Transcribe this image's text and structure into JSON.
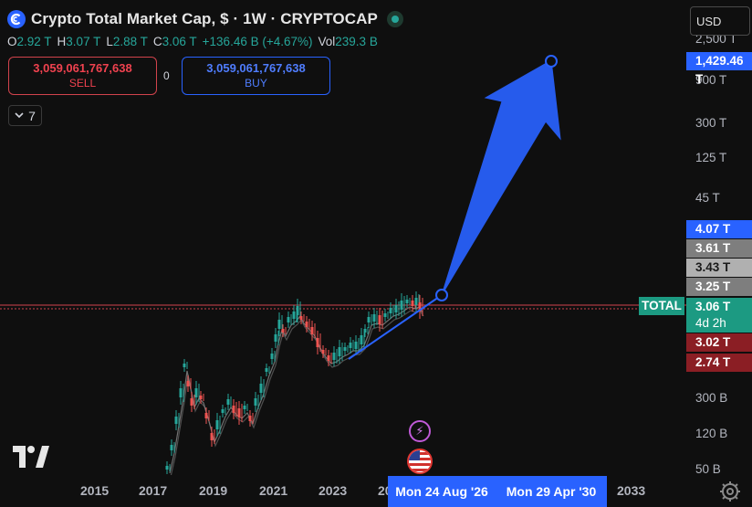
{
  "header": {
    "title": "Crypto Total Market Cap, $ · 1W · CRYPTOCAP",
    "symbol_icon": "crypto-c-icon",
    "status": "market-open"
  },
  "ohlc": {
    "open_key": "O",
    "open": "2.92 T",
    "high_key": "H",
    "high": "3.07 T",
    "low_key": "L",
    "low": "2.88 T",
    "close_key": "C",
    "close": "3.06 T",
    "change": "+136.46 B (+4.67%)",
    "vol_key": "Vol",
    "vol": "239.3 B"
  },
  "trade": {
    "sell_price": "3,059,061,767,638",
    "sell_label": "SELL",
    "spread": "0",
    "buy_price": "3,059,061,767,638",
    "buy_label": "BUY"
  },
  "indicators_toggle": {
    "count": "7"
  },
  "currency": "USD",
  "y_axis": {
    "labels": [
      {
        "text": "2,500 T"
      },
      {
        "text": "900 T"
      },
      {
        "text": "300 T"
      },
      {
        "text": "125 T"
      },
      {
        "text": "45 T"
      },
      {
        "text": "300 B"
      },
      {
        "text": "120 B"
      },
      {
        "text": "50 B"
      }
    ],
    "price_tags": [
      {
        "text": "1,429.46 T",
        "bg": "#2962ff",
        "color": "#ffffff"
      },
      {
        "text": "4.07 T",
        "bg": "#2962ff",
        "color": "#ffffff"
      },
      {
        "text": "3.61 T",
        "bg": "#7e7e7e",
        "color": "#ffffff"
      },
      {
        "text": "3.43 T",
        "bg": "#b0b0b0",
        "color": "#1a1a1a"
      },
      {
        "text": "3.25 T",
        "bg": "#7e7e7e",
        "color": "#ffffff"
      },
      {
        "text": "3.06 T",
        "bg": "#1c9a82",
        "color": "#ffffff"
      },
      {
        "text": "4d 2h",
        "bg": "#1c9a82",
        "color": "#ffffff"
      },
      {
        "text": "3.02 T",
        "bg": "#8b1e24",
        "color": "#ffffff"
      },
      {
        "text": "2.74 T",
        "bg": "#8b1e24",
        "color": "#ffffff"
      }
    ]
  },
  "series_label": "TOTAL",
  "x_axis": {
    "labels": [
      "2015",
      "2017",
      "2019",
      "2021",
      "2023",
      "20",
      "2033"
    ],
    "date_tag_1": "Mon 24 Aug '26",
    "date_tag_2": "Mon 29 Apr '30"
  },
  "colors": {
    "background": "#0f0f0f",
    "arrow": "#2962ff",
    "up": "#26a69a",
    "down": "#ef5350",
    "price_line": "#d1434c"
  },
  "icons": {
    "logo": "tradingview-logo",
    "settings": "gear-icon",
    "event_1": "lightning-icon",
    "event_2": "us-flag-icon"
  }
}
